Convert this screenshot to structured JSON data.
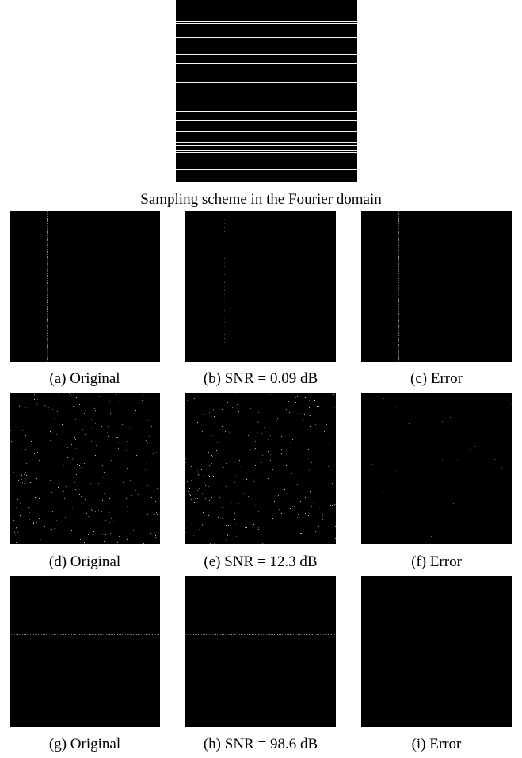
{
  "figure": {
    "main_caption": "Sampling scheme in the Fourier domain",
    "rows": [
      {
        "panels": [
          {
            "caption": "(a) Original",
            "pattern": "vertical-line"
          },
          {
            "caption": "(b) SNR = 0.09 dB",
            "pattern": "vertical-line-faint"
          },
          {
            "caption": "(c) Error",
            "pattern": "vertical-line"
          }
        ]
      },
      {
        "panels": [
          {
            "caption": "(d) Original",
            "pattern": "random-dots"
          },
          {
            "caption": "(e) SNR = 12.3 dB",
            "pattern": "random-dots"
          },
          {
            "caption": "(f) Error",
            "pattern": "random-dots-sparse"
          }
        ]
      },
      {
        "panels": [
          {
            "caption": "(g) Original",
            "pattern": "horizontal-line"
          },
          {
            "caption": "(h) SNR = 98.6 dB",
            "pattern": "horizontal-line"
          },
          {
            "caption": "(i) Error",
            "pattern": "empty"
          }
        ]
      }
    ]
  }
}
